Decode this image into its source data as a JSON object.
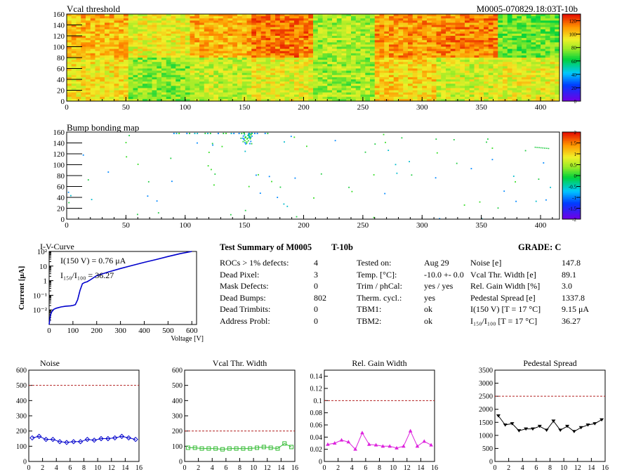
{
  "header": {
    "plot_title": "Vcal threshold",
    "run_id": "M0005-070829.18:03T-10b"
  },
  "chart_data": [
    {
      "type": "heatmap",
      "title": "Vcal threshold",
      "xlim": [
        0,
        416
      ],
      "ylim": [
        0,
        160
      ],
      "x_ticks": [
        "0",
        "50",
        "100",
        "150",
        "200",
        "250",
        "300",
        "350",
        "400"
      ],
      "y_ticks": [
        "0",
        "20",
        "40",
        "60",
        "80",
        "100",
        "120",
        "140",
        "160"
      ],
      "z_ticks": [
        "0",
        "20",
        "40",
        "60",
        "80",
        "100",
        "120"
      ],
      "zlim": [
        0,
        130
      ],
      "roc_top_means": [
        105,
        92,
        106,
        115,
        82,
        110,
        114,
        74
      ],
      "roc_bottom_means": [
        96,
        78,
        86,
        92,
        80,
        100,
        88,
        92
      ]
    },
    {
      "type": "heatmap",
      "title": "Bump bonding map",
      "xlim": [
        0,
        416
      ],
      "ylim": [
        0,
        160
      ],
      "x_ticks": [
        "0",
        "50",
        "100",
        "150",
        "200",
        "250",
        "300",
        "350",
        "400"
      ],
      "y_ticks": [
        "0",
        "20",
        "40",
        "60",
        "80",
        "100",
        "120",
        "140",
        "160"
      ],
      "z_ticks": [
        "-2",
        "-1.5",
        "-1",
        "-0.5",
        "0",
        "0.5",
        "1",
        "1.5",
        "2"
      ],
      "zlim": [
        -2,
        2
      ]
    },
    {
      "type": "line",
      "title": "I-V-Curve",
      "xlabel": "Voltage [V]",
      "ylabel": "Current [μA]",
      "yscale": "log",
      "xlim": [
        0,
        620
      ],
      "ylim": [
        0.001,
        100
      ],
      "x_ticks": [
        "0",
        "100",
        "200",
        "300",
        "400",
        "500",
        "600"
      ],
      "y_ticks": [
        "10⁻²",
        "10⁻¹",
        "1",
        "10",
        "10²"
      ],
      "annotation1": "I(150 V) = 0.76 μA",
      "annotation2": "I₁₅₀/I₁₀₀ = 36.27",
      "x": [
        0,
        5,
        10,
        20,
        30,
        50,
        70,
        90,
        100,
        110,
        120,
        130,
        140,
        150,
        160,
        175,
        200,
        250,
        300,
        350,
        400,
        450,
        500,
        550,
        600
      ],
      "y": [
        0.0006,
        0.004,
        0.007,
        0.011,
        0.013,
        0.016,
        0.018,
        0.019,
        0.02,
        0.023,
        0.05,
        0.22,
        0.62,
        0.76,
        0.85,
        1.2,
        2.2,
        4.0,
        6.8,
        11,
        18,
        28,
        45,
        70,
        100
      ]
    },
    {
      "type": "line",
      "title": "Noise",
      "xlim": [
        0,
        16
      ],
      "ylim": [
        0,
        600
      ],
      "x_ticks": [
        "0",
        "2",
        "4",
        "6",
        "8",
        "10",
        "12",
        "14",
        "16"
      ],
      "y_ticks": [
        "0",
        "100",
        "200",
        "300",
        "400",
        "500",
        "600"
      ],
      "limit": 500,
      "x": [
        0,
        1,
        2,
        3,
        4,
        5,
        6,
        7,
        8,
        9,
        10,
        11,
        12,
        13,
        14,
        15
      ],
      "y": [
        155,
        165,
        145,
        145,
        130,
        125,
        130,
        130,
        145,
        140,
        150,
        150,
        155,
        165,
        155,
        145
      ],
      "color": "#0000cc"
    },
    {
      "type": "line",
      "title": "Vcal Thr. Width",
      "xlim": [
        0,
        16
      ],
      "ylim": [
        0,
        600
      ],
      "x_ticks": [
        "0",
        "2",
        "4",
        "6",
        "8",
        "10",
        "12",
        "14",
        "16"
      ],
      "y_ticks": [
        "0",
        "100",
        "200",
        "300",
        "400",
        "500",
        "600"
      ],
      "limit": 200,
      "x": [
        0,
        1,
        2,
        3,
        4,
        5,
        6,
        7,
        8,
        9,
        10,
        11,
        12,
        13,
        14,
        15
      ],
      "y": [
        90,
        90,
        85,
        85,
        85,
        80,
        85,
        85,
        85,
        85,
        90,
        95,
        90,
        85,
        118,
        95
      ],
      "color": "#33bb33"
    },
    {
      "type": "line",
      "title": "Rel. Gain Width",
      "xlim": [
        0,
        16
      ],
      "ylim": [
        0,
        0.15
      ],
      "x_ticks": [
        "0",
        "2",
        "4",
        "6",
        "8",
        "10",
        "12",
        "14",
        "16"
      ],
      "y_ticks": [
        "0",
        "0.02",
        "0.04",
        "0.06",
        "0.08",
        "0.1",
        "0.12",
        "0.14"
      ],
      "limit": 0.1,
      "x": [
        0,
        1,
        2,
        3,
        4,
        5,
        6,
        7,
        8,
        9,
        10,
        11,
        12,
        13,
        14,
        15
      ],
      "y": [
        0.028,
        0.03,
        0.035,
        0.032,
        0.02,
        0.047,
        0.028,
        0.027,
        0.025,
        0.025,
        0.022,
        0.025,
        0.05,
        0.025,
        0.033,
        0.027
      ],
      "color": "#dd22dd"
    },
    {
      "type": "line",
      "title": "Pedestal Spread",
      "xlim": [
        0,
        16
      ],
      "ylim": [
        0,
        3500
      ],
      "x_ticks": [
        "0",
        "2",
        "4",
        "6",
        "8",
        "10",
        "12",
        "14",
        "16"
      ],
      "y_ticks": [
        "0",
        "500",
        "1000",
        "1500",
        "2000",
        "2500",
        "3000",
        "3500"
      ],
      "limit": 2500,
      "x": [
        0,
        1,
        2,
        3,
        4,
        5,
        6,
        7,
        8,
        9,
        10,
        11,
        12,
        13,
        14,
        15
      ],
      "y": [
        1750,
        1400,
        1450,
        1180,
        1250,
        1250,
        1350,
        1200,
        1550,
        1200,
        1350,
        1150,
        1300,
        1400,
        1450,
        1600
      ],
      "color": "#000000"
    }
  ],
  "summary": {
    "title": "Test Summary of M0005",
    "tag": "T-10b",
    "grade": "GRADE:  C",
    "col1_labels": [
      "ROCs > 1% defects:",
      "Dead Pixel:",
      "Mask Defects:",
      "Dead Bumps:",
      "Dead Trimbits:",
      "Address Probl:"
    ],
    "col1_values": [
      "4",
      "3",
      "0",
      "802",
      "0",
      "0"
    ],
    "col2_labels": [
      "Tested on:",
      "Temp. [°C]:",
      "Trim / phCal:",
      "Therm. cycl.:",
      "TBM1:",
      "TBM2:"
    ],
    "col2_values": [
      "Aug 29",
      "-10.0 +- 0.0",
      "yes / yes",
      "yes",
      "ok",
      "ok"
    ],
    "col3_labels": [
      "Noise [e]",
      "Vcal Thr. Width [e]",
      "Rel. Gain Width [%]",
      "Pedestal Spread [e]",
      "I(150 V) [T = 17 °C]",
      "I₁₅₀/I₁₀₀  [T = 17 °C]"
    ],
    "col3_values": [
      "147.8",
      "89.1",
      "3.0",
      "1337.8",
      "9.15 μA",
      "36.27"
    ]
  }
}
